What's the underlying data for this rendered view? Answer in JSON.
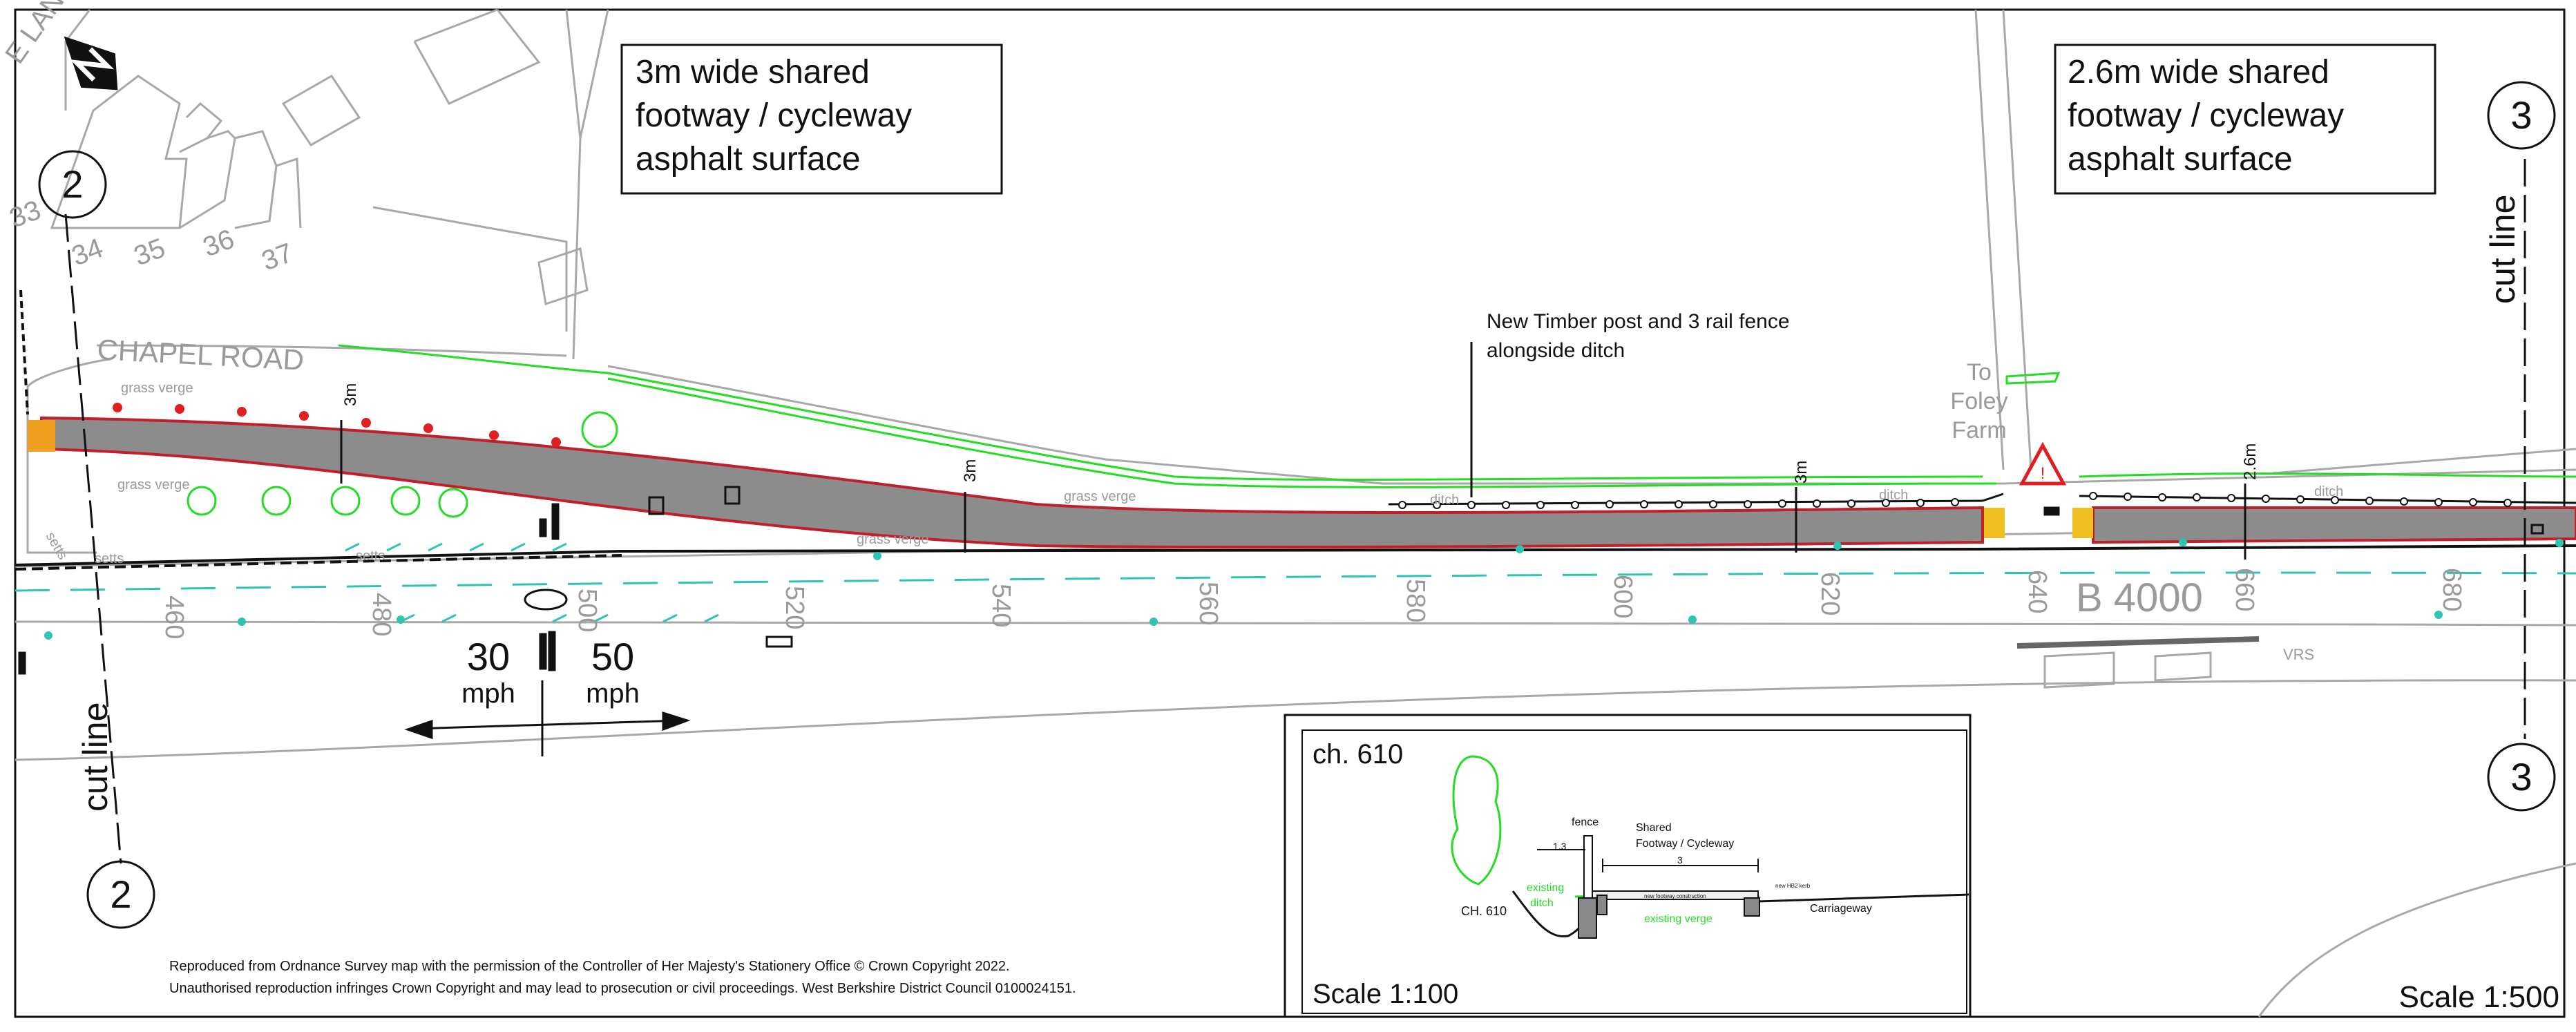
{
  "callouts": {
    "left_note": [
      "3m wide shared",
      "footway / cycleway",
      "asphalt surface"
    ],
    "right_note": [
      "2.6m wide shared",
      "footway / cycleway",
      "asphalt surface"
    ],
    "fence_note": [
      "New Timber post and 3 rail fence",
      "alongside ditch"
    ],
    "to_foley_farm": [
      "To",
      "Foley",
      "Farm"
    ]
  },
  "road_labels": {
    "chapel_road": "CHAPEL ROAD",
    "b4000": "B 4000",
    "lane_fragment": "E LANE",
    "vrs": "VRS"
  },
  "house_numbers": [
    "33",
    "34",
    "35",
    "36",
    "37"
  ],
  "verge_labels": {
    "grass_verge": "grass verge",
    "setts": "setts",
    "ditch": "ditch"
  },
  "widths": {
    "w3m": "3m",
    "w26m": "2.6m"
  },
  "chainage_labels": [
    "460",
    "480",
    "500",
    "520",
    "540",
    "560",
    "580",
    "600",
    "620",
    "640",
    "660",
    "680"
  ],
  "cut_lines": {
    "left_number": "2",
    "right_number": "3",
    "label": "cut line"
  },
  "speed": {
    "left_value": "30",
    "left_unit": "mph",
    "right_value": "50",
    "right_unit": "mph"
  },
  "inset": {
    "title": "ch. 610",
    "scale": "Scale 1:100",
    "ch_label": "CH. 610",
    "fence": "fence",
    "shared": [
      "Shared",
      "Footway / Cycleway"
    ],
    "dim_13": "1.3",
    "dim_3": "3",
    "existing_ditch": [
      "existing",
      "ditch"
    ],
    "existing_verge": "existing verge",
    "carriageway": "Carriageway",
    "new_kerb": "new HB2 kerb",
    "construction": "new footway construction"
  },
  "scale_main": "Scale 1:500",
  "copyright": [
    "Reproduced from Ordnance Survey map with the permission of the Controller of Her Majesty's Stationery Office © Crown Copyright 2022.",
    "Unauthorised reproduction infringes Crown Copyright and may lead to prosecution or civil proceedings. West Berkshire District Council 0100024151."
  ],
  "colors": {
    "path_fill": "#8c8c8c",
    "path_edge": "#c0202a",
    "verge_green": "#22dd22",
    "centreline_cyan": "#2fc4b2",
    "base_lines": "#a8a8a8",
    "warning_red": "#e02020",
    "tactile_orange": "#f0a020"
  },
  "icons": [
    "north-arrow-icon",
    "warning-triangle-icon",
    "tree-icon"
  ]
}
